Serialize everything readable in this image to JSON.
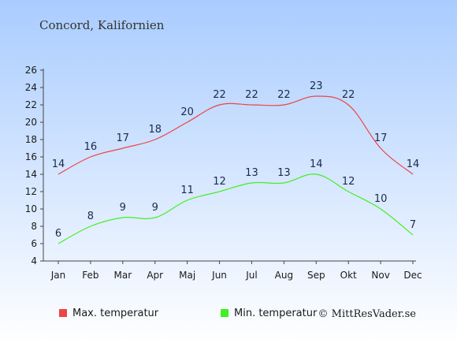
{
  "chart_data": {
    "type": "line",
    "title": "Concord, Kalifornien",
    "categories": [
      "Jan",
      "Feb",
      "Mar",
      "Apr",
      "Maj",
      "Jun",
      "Jul",
      "Aug",
      "Sep",
      "Okt",
      "Nov",
      "Dec"
    ],
    "series": [
      {
        "name": "Max. temperatur",
        "color": "#ee4444",
        "values": [
          14,
          16,
          17,
          18,
          20,
          22,
          22,
          22,
          23,
          22,
          17,
          14
        ]
      },
      {
        "name": "Min. temperatur",
        "color": "#44ee22",
        "values": [
          6,
          8,
          9,
          9,
          11,
          12,
          13,
          13,
          14,
          12,
          10,
          7
        ]
      }
    ],
    "ylim": [
      4,
      26
    ],
    "yticks": [
      4,
      6,
      8,
      10,
      12,
      14,
      16,
      18,
      20,
      22,
      24,
      26
    ],
    "grid": false,
    "legend": "bottom",
    "credit": "© MittResVader.se",
    "background_top": "#a9ccff",
    "background_bottom": "#ffffff"
  }
}
